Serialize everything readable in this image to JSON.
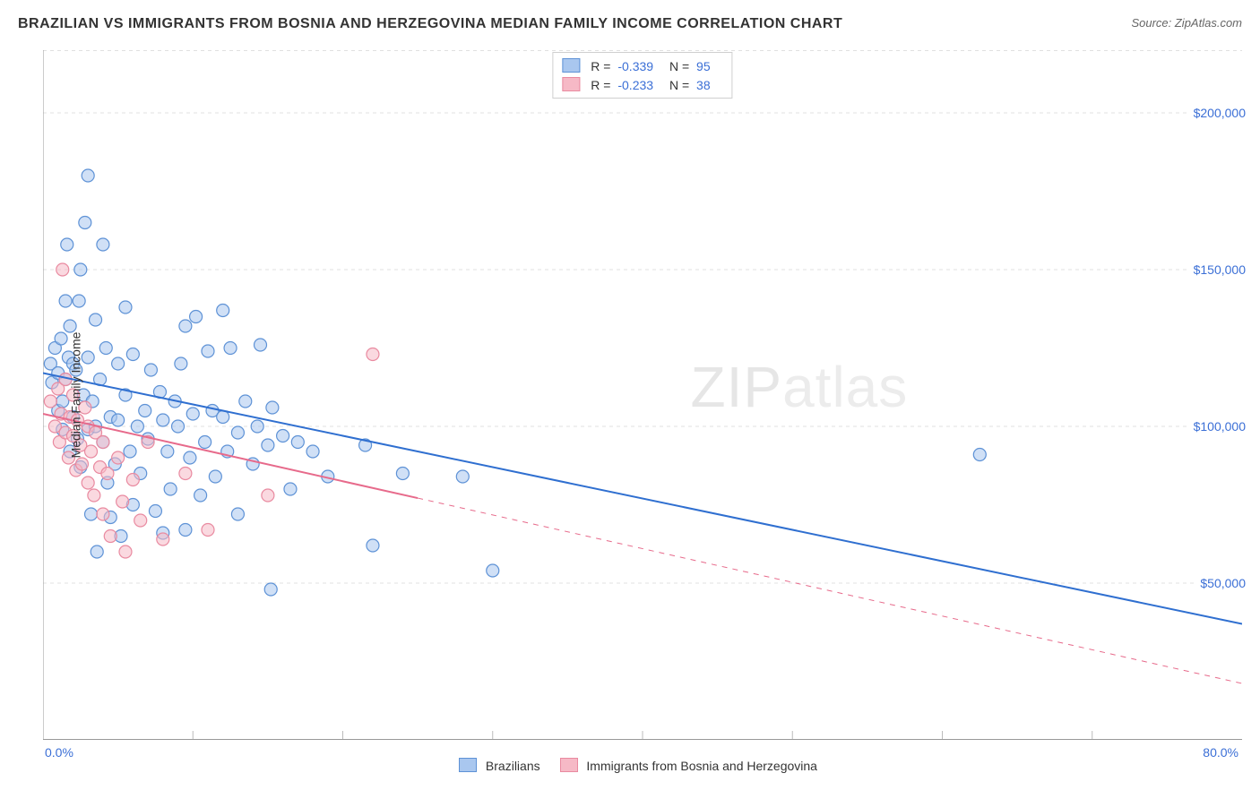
{
  "header": {
    "title": "BRAZILIAN VS IMMIGRANTS FROM BOSNIA AND HERZEGOVINA MEDIAN FAMILY INCOME CORRELATION CHART",
    "source": "Source: ZipAtlas.com"
  },
  "watermark": {
    "bold": "ZIP",
    "thin": "atlas"
  },
  "chart": {
    "type": "scatter",
    "ylabel": "Median Family Income",
    "xlim": [
      0,
      80
    ],
    "ylim": [
      0,
      220000
    ],
    "x_axis_label_min": "0.0%",
    "x_axis_label_max": "80.0%",
    "y_grid": [
      50000,
      100000,
      150000,
      200000
    ],
    "y_tick_labels": [
      "$50,000",
      "$100,000",
      "$150,000",
      "$200,000"
    ],
    "x_grid": [
      10,
      20,
      30,
      40,
      50,
      60,
      70
    ],
    "background_color": "#ffffff",
    "grid_color": "#e0e0e0",
    "grid_dash": "4,4",
    "axis_color": "#999999",
    "tick_color": "#bbbbbb",
    "marker_radius": 7,
    "marker_stroke_width": 1.2,
    "trend_line_width": 2,
    "label_fontsize": 14,
    "tick_label_color": "#3b6fd6",
    "series": [
      {
        "key": "brazilians",
        "label": "Brazilians",
        "fill": "#a9c7ef",
        "stroke": "#5e92d6",
        "fill_opacity": 0.55,
        "R": "-0.339",
        "N": "95",
        "trend": {
          "x1": 0,
          "y1": 117000,
          "x2": 80,
          "y2": 37000,
          "color": "#2f6fd0",
          "dash_after_x": null
        },
        "points": [
          [
            0.5,
            120000
          ],
          [
            0.6,
            114000
          ],
          [
            0.8,
            125000
          ],
          [
            1.0,
            105000
          ],
          [
            1.0,
            117000
          ],
          [
            1.2,
            128000
          ],
          [
            1.3,
            108000
          ],
          [
            1.3,
            99000
          ],
          [
            1.5,
            140000
          ],
          [
            1.5,
            115000
          ],
          [
            1.6,
            158000
          ],
          [
            1.7,
            122000
          ],
          [
            1.8,
            92000
          ],
          [
            1.8,
            132000
          ],
          [
            2.0,
            103000
          ],
          [
            2.0,
            120000
          ],
          [
            2.2,
            118000
          ],
          [
            2.3,
            96000
          ],
          [
            2.4,
            140000
          ],
          [
            2.5,
            87000
          ],
          [
            2.5,
            150000
          ],
          [
            2.7,
            110000
          ],
          [
            2.8,
            165000
          ],
          [
            3.0,
            99000
          ],
          [
            3.0,
            122000
          ],
          [
            3.0,
            180000
          ],
          [
            3.2,
            72000
          ],
          [
            3.3,
            108000
          ],
          [
            3.5,
            134000
          ],
          [
            3.5,
            100000
          ],
          [
            3.6,
            60000
          ],
          [
            3.8,
            115000
          ],
          [
            4.0,
            95000
          ],
          [
            4.0,
            158000
          ],
          [
            4.2,
            125000
          ],
          [
            4.3,
            82000
          ],
          [
            4.5,
            103000
          ],
          [
            4.5,
            71000
          ],
          [
            4.8,
            88000
          ],
          [
            5.0,
            120000
          ],
          [
            5.0,
            102000
          ],
          [
            5.2,
            65000
          ],
          [
            5.5,
            110000
          ],
          [
            5.5,
            138000
          ],
          [
            5.8,
            92000
          ],
          [
            6.0,
            75000
          ],
          [
            6.0,
            123000
          ],
          [
            6.3,
            100000
          ],
          [
            6.5,
            85000
          ],
          [
            6.8,
            105000
          ],
          [
            7.0,
            96000
          ],
          [
            7.2,
            118000
          ],
          [
            7.5,
            73000
          ],
          [
            7.8,
            111000
          ],
          [
            8.0,
            102000
          ],
          [
            8.0,
            66000
          ],
          [
            8.3,
            92000
          ],
          [
            8.5,
            80000
          ],
          [
            8.8,
            108000
          ],
          [
            9.0,
            100000
          ],
          [
            9.2,
            120000
          ],
          [
            9.5,
            132000
          ],
          [
            9.5,
            67000
          ],
          [
            9.8,
            90000
          ],
          [
            10.0,
            104000
          ],
          [
            10.2,
            135000
          ],
          [
            10.5,
            78000
          ],
          [
            10.8,
            95000
          ],
          [
            11.0,
            124000
          ],
          [
            11.3,
            105000
          ],
          [
            11.5,
            84000
          ],
          [
            12.0,
            137000
          ],
          [
            12.0,
            103000
          ],
          [
            12.3,
            92000
          ],
          [
            12.5,
            125000
          ],
          [
            13.0,
            98000
          ],
          [
            13.0,
            72000
          ],
          [
            13.5,
            108000
          ],
          [
            14.0,
            88000
          ],
          [
            14.3,
            100000
          ],
          [
            14.5,
            126000
          ],
          [
            15.0,
            94000
          ],
          [
            15.2,
            48000
          ],
          [
            15.3,
            106000
          ],
          [
            16.0,
            97000
          ],
          [
            16.5,
            80000
          ],
          [
            17.0,
            95000
          ],
          [
            18.0,
            92000
          ],
          [
            19.0,
            84000
          ],
          [
            21.5,
            94000
          ],
          [
            22.0,
            62000
          ],
          [
            24.0,
            85000
          ],
          [
            28.0,
            84000
          ],
          [
            30.0,
            54000
          ],
          [
            62.5,
            91000
          ]
        ]
      },
      {
        "key": "bosnia",
        "label": "Immigrants from Bosnia and Herzegovina",
        "fill": "#f6b9c6",
        "stroke": "#e98aa0",
        "fill_opacity": 0.55,
        "R": "-0.233",
        "N": "38",
        "trend": {
          "x1": 0,
          "y1": 104000,
          "x2": 80,
          "y2": 18000,
          "color": "#e76a8b",
          "dash_after_x": 25
        },
        "points": [
          [
            0.5,
            108000
          ],
          [
            0.8,
            100000
          ],
          [
            1.0,
            112000
          ],
          [
            1.1,
            95000
          ],
          [
            1.2,
            104000
          ],
          [
            1.3,
            150000
          ],
          [
            1.5,
            98000
          ],
          [
            1.5,
            115000
          ],
          [
            1.7,
            90000
          ],
          [
            1.8,
            103000
          ],
          [
            2.0,
            97000
          ],
          [
            2.0,
            110000
          ],
          [
            2.2,
            86000
          ],
          [
            2.3,
            102000
          ],
          [
            2.5,
            94000
          ],
          [
            2.6,
            88000
          ],
          [
            2.8,
            106000
          ],
          [
            3.0,
            82000
          ],
          [
            3.0,
            100000
          ],
          [
            3.2,
            92000
          ],
          [
            3.4,
            78000
          ],
          [
            3.5,
            98000
          ],
          [
            3.8,
            87000
          ],
          [
            4.0,
            72000
          ],
          [
            4.0,
            95000
          ],
          [
            4.3,
            85000
          ],
          [
            4.5,
            65000
          ],
          [
            5.0,
            90000
          ],
          [
            5.3,
            76000
          ],
          [
            5.5,
            60000
          ],
          [
            6.0,
            83000
          ],
          [
            6.5,
            70000
          ],
          [
            7.0,
            95000
          ],
          [
            8.0,
            64000
          ],
          [
            9.5,
            85000
          ],
          [
            11.0,
            67000
          ],
          [
            15.0,
            78000
          ],
          [
            22.0,
            123000
          ]
        ]
      }
    ]
  },
  "bottom_legend": {
    "items": [
      {
        "label": "Brazilians",
        "fill": "#a9c7ef",
        "stroke": "#5e92d6"
      },
      {
        "label": "Immigrants from Bosnia and Herzegovina",
        "fill": "#f6b9c6",
        "stroke": "#e98aa0"
      }
    ]
  }
}
